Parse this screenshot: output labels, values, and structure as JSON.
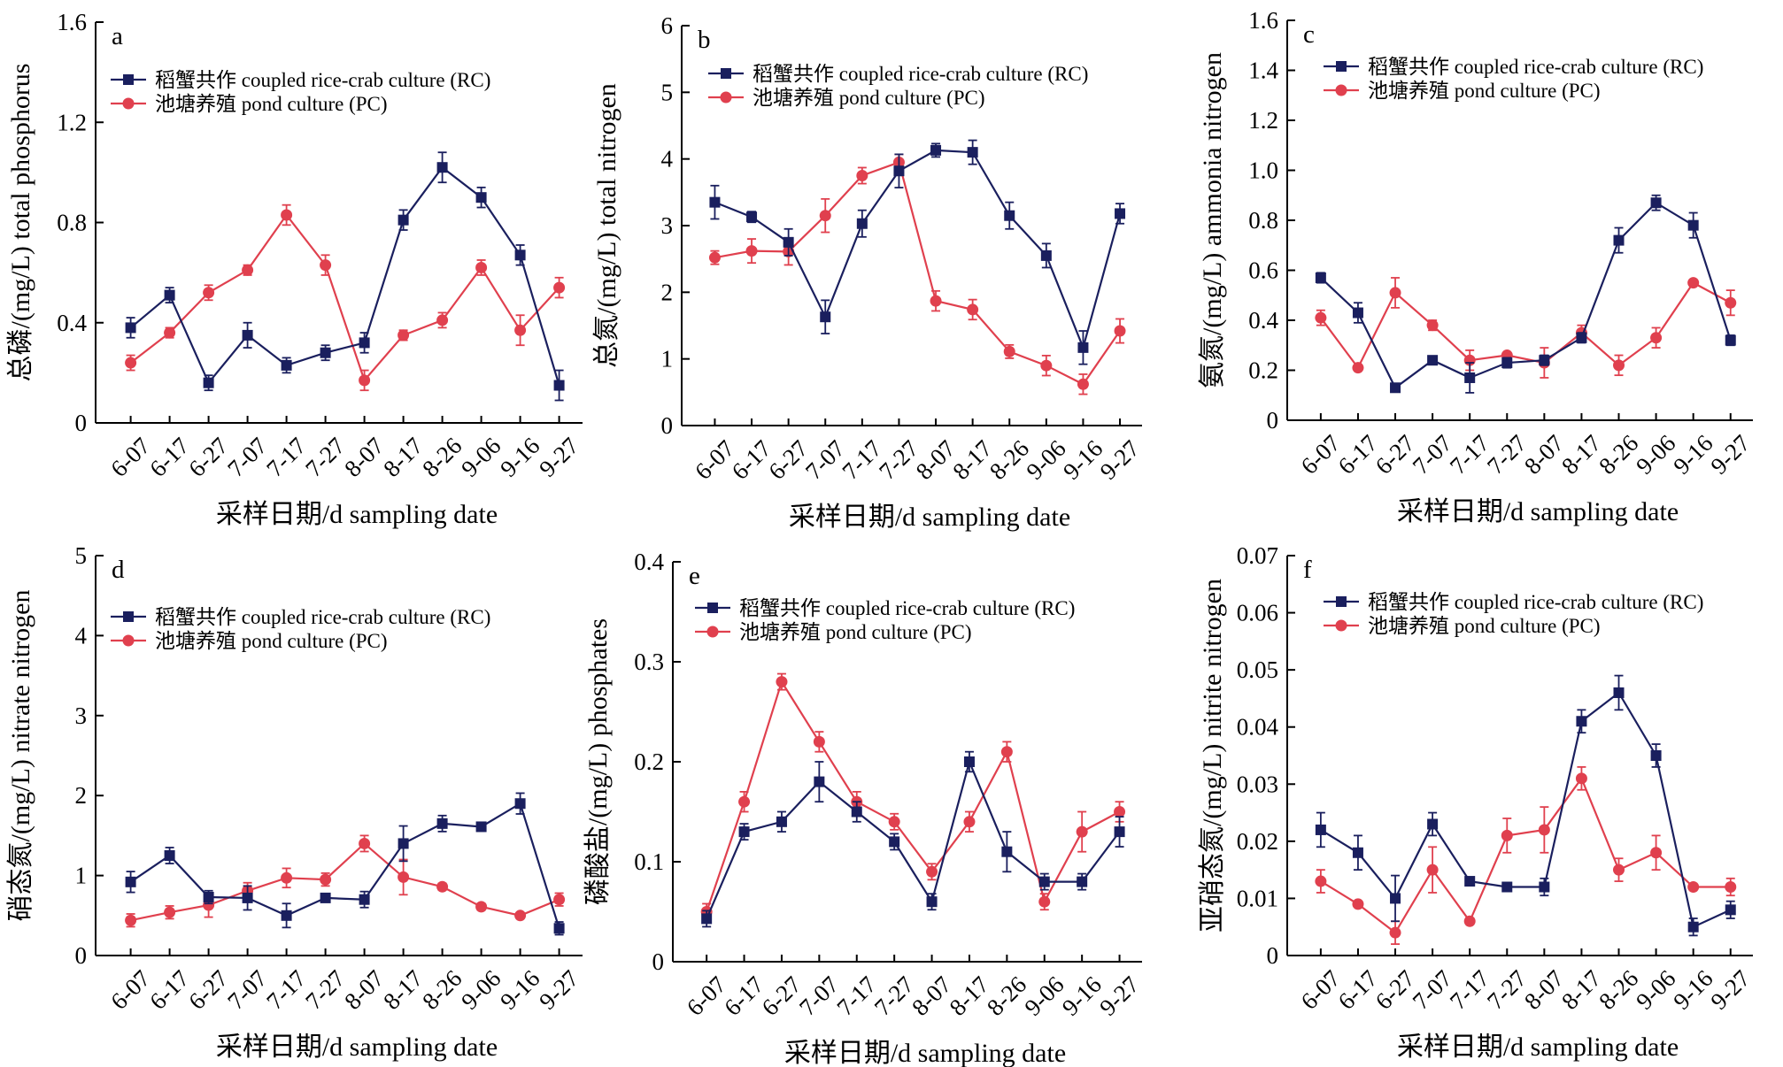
{
  "x_categories": [
    "6-07",
    "6-17",
    "6-27",
    "7-07",
    "7-17",
    "7-27",
    "8-07",
    "8-17",
    "8-26",
    "9-06",
    "9-16",
    "9-27"
  ],
  "xlabel": "采样日期/d sampling date",
  "series_names": [
    "稻蟹共作 coupled rice-crab culture (RC)",
    "池塘养殖 pond culture (PC)"
  ],
  "colors": {
    "rc": "#1a1f5e",
    "pc": "#e0404e"
  },
  "chart_data": [
    {
      "type": "line",
      "panel": "a",
      "ylabel": "总磷/(mg/L) total phosphorus",
      "ylim": [
        0,
        1.6
      ],
      "yticks": [
        "0",
        "0.4",
        "0.8",
        "1.2",
        "1.6"
      ],
      "categories": [
        "6-07",
        "6-17",
        "6-27",
        "7-07",
        "7-17",
        "7-27",
        "8-07",
        "8-17",
        "8-26",
        "9-06",
        "9-16",
        "9-27"
      ],
      "series": [
        {
          "name": "稻蟹共作 coupled rice-crab culture (RC)",
          "values": [
            0.38,
            0.51,
            0.16,
            0.35,
            0.23,
            0.28,
            0.32,
            0.81,
            1.02,
            0.9,
            0.67,
            0.15
          ],
          "errors": [
            0.04,
            0.03,
            0.03,
            0.05,
            0.03,
            0.03,
            0.04,
            0.04,
            0.06,
            0.04,
            0.04,
            0.06
          ]
        },
        {
          "name": "池塘养殖 pond culture (PC)",
          "values": [
            0.24,
            0.36,
            0.52,
            0.61,
            0.83,
            0.63,
            0.17,
            0.35,
            0.41,
            0.62,
            0.37,
            0.54
          ],
          "errors": [
            0.03,
            0.02,
            0.03,
            0.02,
            0.04,
            0.04,
            0.04,
            0.02,
            0.03,
            0.03,
            0.06,
            0.04
          ]
        }
      ]
    },
    {
      "type": "line",
      "panel": "b",
      "ylabel": "总氮/(mg/L) total nitrogen",
      "ylim": [
        0,
        6
      ],
      "yticks": [
        "0",
        "1",
        "2",
        "3",
        "4",
        "5",
        "6"
      ],
      "categories": [
        "6-07",
        "6-17",
        "6-27",
        "7-07",
        "7-17",
        "7-27",
        "8-07",
        "8-17",
        "8-26",
        "9-06",
        "9-16",
        "9-27"
      ],
      "series": [
        {
          "name": "稻蟹共作 coupled rice-crab culture (RC)",
          "values": [
            3.35,
            3.13,
            2.75,
            1.63,
            3.03,
            3.82,
            4.13,
            4.1,
            3.15,
            2.55,
            1.17,
            3.18
          ],
          "errors": [
            0.25,
            0.08,
            0.2,
            0.25,
            0.2,
            0.25,
            0.1,
            0.18,
            0.2,
            0.18,
            0.25,
            0.15
          ]
        },
        {
          "name": "池塘养殖 pond culture (PC)",
          "values": [
            2.52,
            2.62,
            2.61,
            3.15,
            3.75,
            3.95,
            1.87,
            1.74,
            1.11,
            0.9,
            0.62,
            1.42
          ],
          "errors": [
            0.1,
            0.18,
            0.2,
            0.25,
            0.12,
            0.12,
            0.15,
            0.15,
            0.1,
            0.15,
            0.15,
            0.18
          ]
        }
      ]
    },
    {
      "type": "line",
      "panel": "c",
      "ylabel": "氨氮/(mg/L) ammonia nitrogen",
      "ylim": [
        0,
        1.6
      ],
      "yticks": [
        "0",
        "0.2",
        "0.4",
        "0.6",
        "0.8",
        "1.0",
        "1.2",
        "1.4",
        "1.6"
      ],
      "categories": [
        "6-07",
        "6-17",
        "6-27",
        "7-07",
        "7-17",
        "7-27",
        "8-07",
        "8-17",
        "8-26",
        "9-06",
        "9-16",
        "9-27"
      ],
      "series": [
        {
          "name": "稻蟹共作 coupled rice-crab culture (RC)",
          "values": [
            0.57,
            0.43,
            0.13,
            0.24,
            0.17,
            0.23,
            0.24,
            0.33,
            0.72,
            0.87,
            0.78,
            0.32
          ],
          "errors": [
            0.02,
            0.04,
            0.01,
            0.01,
            0.06,
            0.02,
            0.02,
            0.02,
            0.05,
            0.03,
            0.05,
            0.02
          ]
        },
        {
          "name": "池塘养殖 pond culture (PC)",
          "values": [
            0.41,
            0.21,
            0.51,
            0.38,
            0.24,
            0.26,
            0.23,
            0.35,
            0.22,
            0.33,
            0.55,
            0.47
          ],
          "errors": [
            0.03,
            0.01,
            0.06,
            0.02,
            0.04,
            0.01,
            0.06,
            0.03,
            0.04,
            0.04,
            0.01,
            0.05
          ]
        }
      ]
    },
    {
      "type": "line",
      "panel": "d",
      "ylabel": "硝态氮/(mg/L) nitrate nitrogen",
      "ylim": [
        0,
        5
      ],
      "yticks": [
        "0",
        "1",
        "2",
        "3",
        "4",
        "5"
      ],
      "categories": [
        "6-07",
        "6-17",
        "6-27",
        "7-07",
        "7-17",
        "7-27",
        "8-07",
        "8-17",
        "8-26",
        "9-06",
        "9-16",
        "9-27"
      ],
      "series": [
        {
          "name": "稻蟹共作 coupled rice-crab culture (RC)",
          "values": [
            0.92,
            1.25,
            0.73,
            0.72,
            0.5,
            0.72,
            0.7,
            1.4,
            1.65,
            1.61,
            1.9,
            0.34
          ],
          "errors": [
            0.13,
            0.1,
            0.08,
            0.15,
            0.15,
            0.04,
            0.1,
            0.22,
            0.1,
            0.04,
            0.13,
            0.08
          ]
        },
        {
          "name": "池塘养殖 pond culture (PC)",
          "values": [
            0.44,
            0.54,
            0.63,
            0.81,
            0.97,
            0.95,
            1.4,
            0.98,
            0.86,
            0.61,
            0.5,
            0.7
          ],
          "errors": [
            0.08,
            0.08,
            0.15,
            0.1,
            0.12,
            0.08,
            0.1,
            0.22,
            0.04,
            0.04,
            0.03,
            0.08
          ]
        }
      ]
    },
    {
      "type": "line",
      "panel": "e",
      "ylabel": "磷酸盐/(mg/L) phosphates",
      "ylim": [
        0,
        0.4
      ],
      "yticks": [
        "0",
        "0.1",
        "0.2",
        "0.3",
        "0.4"
      ],
      "categories": [
        "6-07",
        "6-17",
        "6-27",
        "7-07",
        "7-17",
        "7-27",
        "8-07",
        "8-17",
        "8-26",
        "9-06",
        "9-16",
        "9-27"
      ],
      "series": [
        {
          "name": "稻蟹共作 coupled rice-crab culture (RC)",
          "values": [
            0.043,
            0.13,
            0.14,
            0.18,
            0.15,
            0.12,
            0.06,
            0.2,
            0.11,
            0.08,
            0.08,
            0.13
          ],
          "errors": [
            0.008,
            0.008,
            0.01,
            0.02,
            0.01,
            0.008,
            0.008,
            0.01,
            0.02,
            0.008,
            0.008,
            0.015
          ]
        },
        {
          "name": "池塘养殖 pond culture (PC)",
          "values": [
            0.05,
            0.16,
            0.28,
            0.22,
            0.16,
            0.14,
            0.09,
            0.14,
            0.21,
            0.06,
            0.13,
            0.15
          ],
          "errors": [
            0.008,
            0.01,
            0.008,
            0.01,
            0.01,
            0.008,
            0.008,
            0.01,
            0.01,
            0.008,
            0.02,
            0.01
          ]
        }
      ]
    },
    {
      "type": "line",
      "panel": "f",
      "ylabel": "亚硝态氮/(mg/L) nitrite nitrogen",
      "ylim": [
        0,
        0.07
      ],
      "yticks": [
        "0",
        "0.01",
        "0.02",
        "0.03",
        "0.04",
        "0.05",
        "0.06",
        "0.07"
      ],
      "categories": [
        "6-07",
        "6-17",
        "6-27",
        "7-07",
        "7-17",
        "7-27",
        "8-07",
        "8-17",
        "8-26",
        "9-06",
        "9-16",
        "9-27"
      ],
      "series": [
        {
          "name": "稻蟹共作 coupled rice-crab culture (RC)",
          "values": [
            0.022,
            0.018,
            0.01,
            0.023,
            0.013,
            0.012,
            0.012,
            0.041,
            0.046,
            0.035,
            0.005,
            0.008
          ],
          "errors": [
            0.003,
            0.003,
            0.004,
            0.002,
            0.0005,
            0.0005,
            0.0015,
            0.002,
            0.003,
            0.002,
            0.0015,
            0.0015
          ]
        },
        {
          "name": "池塘养殖 pond culture (PC)",
          "values": [
            0.013,
            0.009,
            0.004,
            0.015,
            0.006,
            0.021,
            0.022,
            0.031,
            0.015,
            0.018,
            0.012,
            0.012
          ],
          "errors": [
            0.002,
            0.0005,
            0.002,
            0.004,
            0.0005,
            0.003,
            0.004,
            0.002,
            0.002,
            0.003,
            0.0005,
            0.0015
          ]
        }
      ]
    }
  ]
}
